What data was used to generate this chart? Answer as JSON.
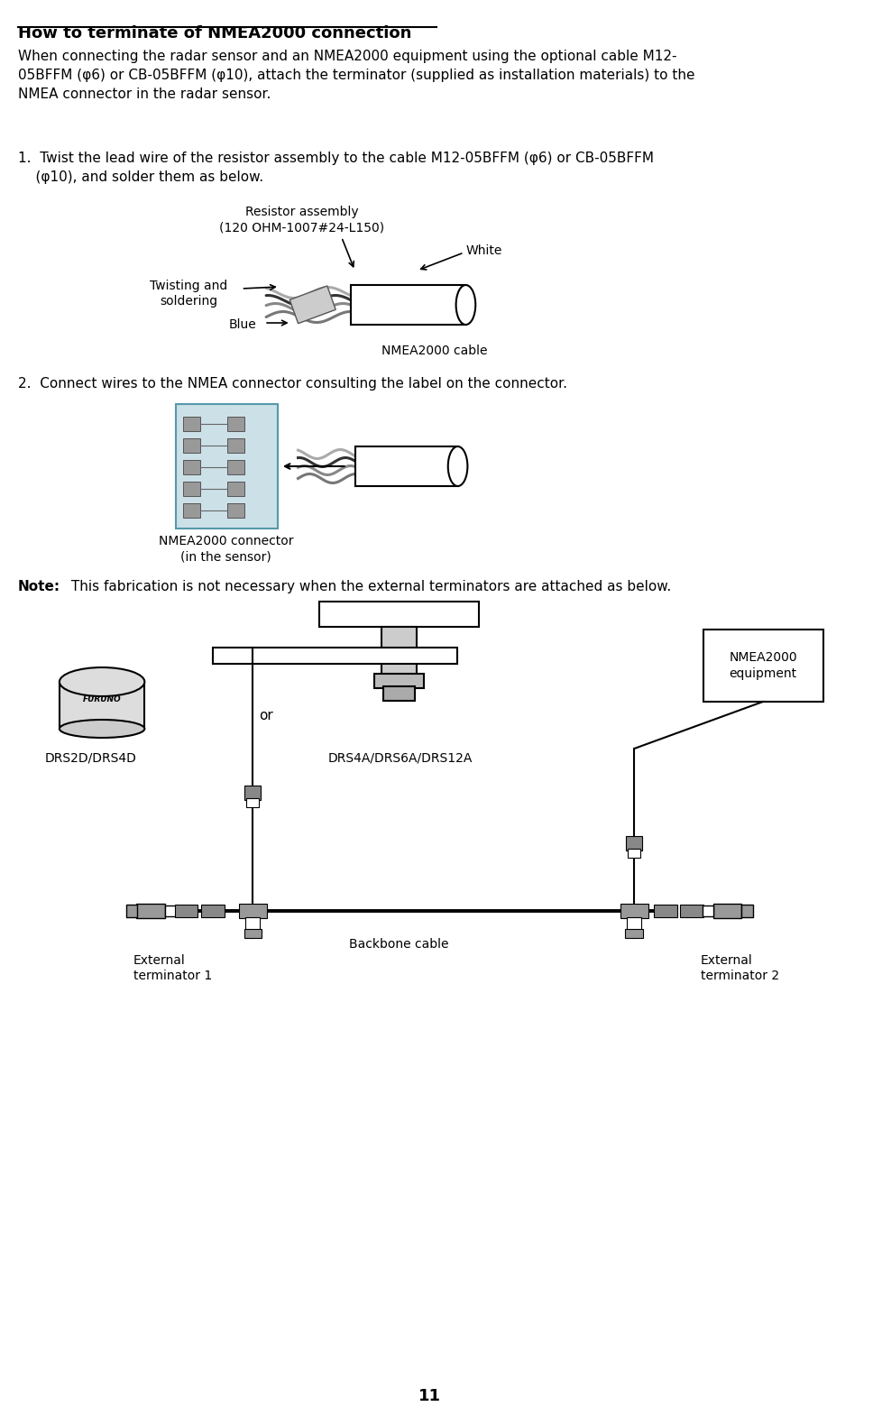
{
  "title": "How to terminate of NMEA2000 connection",
  "bg_color": "#ffffff",
  "text_color": "#000000",
  "body_text": "When connecting the radar sensor and an NMEA2000 equipment using the optional cable M12-\n05BFFM (φ6) or CB-05BFFM (φ10), attach the terminator (supplied as installation materials) to the\nNMEA connector in the radar sensor.",
  "step1_text": "1.  Twist the lead wire of the resistor assembly to the cable M12-05BFFM (φ6) or CB-05BFFM\n    (φ10), and solder them as below.",
  "step2_text": "2.  Connect wires to the NMEA connector consulting the label on the connector.",
  "note_text": "Note:",
  "note_body": " This fabrication is not necessary when the external terminators are attached as below.",
  "resistor_label": "Resistor assembly\n(120 OHM-1007#24-L150)",
  "twisting_label": "Twisting and\nsoldering",
  "white_label": "White",
  "blue_label": "Blue",
  "nmea_cable_label": "NMEA2000 cable",
  "connector_label": "NMEA2000 connector\n(in the sensor)",
  "drs2d_label": "DRS2D/DRS4D",
  "drs4a_label": "DRS4A/DRS6A/DRS12A",
  "nmea_equip_label": "NMEA2000\nequipment",
  "backbone_label": "Backbone cable",
  "ext_term1_label": "External\nterminator 1",
  "ext_term2_label": "External\nterminator 2",
  "or_label": "or",
  "page_number": "11"
}
